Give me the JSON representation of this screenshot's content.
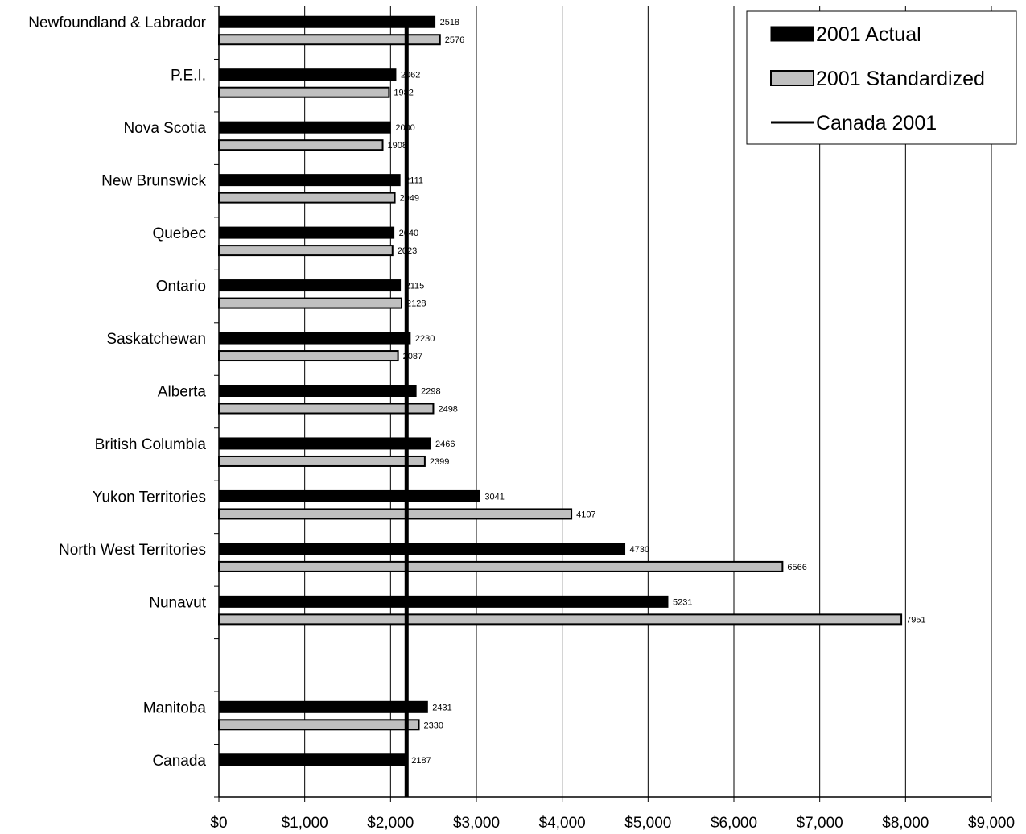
{
  "chart_data": {
    "type": "bar",
    "orientation": "horizontal",
    "categories": [
      "Newfoundland & Labrador",
      "P.E.I.",
      "Nova Scotia",
      "New Brunswick",
      "Quebec",
      "Ontario",
      "Saskatchewan",
      "Alberta",
      "British Columbia",
      "Yukon Territories",
      "North West Territories",
      "Nunavut",
      "",
      "Manitoba",
      "Canada"
    ],
    "series": [
      {
        "name": "2001 Actual",
        "color": "#000000",
        "values": [
          2518,
          2062,
          2000,
          2111,
          2040,
          2115,
          2230,
          2298,
          2466,
          3041,
          4730,
          5231,
          null,
          2431,
          2187
        ]
      },
      {
        "name": "2001 Standardized",
        "color": "#c0c0c0",
        "values": [
          2576,
          1982,
          1908,
          2049,
          2023,
          2128,
          2087,
          2498,
          2399,
          4107,
          6566,
          7951,
          null,
          2330,
          null
        ]
      }
    ],
    "reference_line": {
      "name": "Canada 2001",
      "value": 2187,
      "color": "#000000"
    },
    "xlim": [
      0,
      9000
    ],
    "x_ticks": [
      0,
      1000,
      2000,
      3000,
      4000,
      5000,
      6000,
      7000,
      8000,
      9000
    ],
    "x_tick_labels": [
      "$0",
      "$1,000",
      "$2,000",
      "$3,000",
      "$4,000",
      "$5,000",
      "$6,000",
      "$7,000",
      "$8,000",
      "$9,000"
    ],
    "grid": "vertical",
    "legend_position": "top-right",
    "title": "",
    "xlabel": "",
    "ylabel": ""
  }
}
